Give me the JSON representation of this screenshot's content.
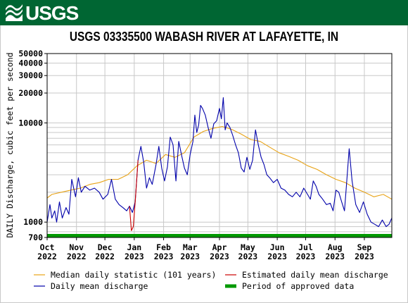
{
  "header": {
    "logo_text": "USGS",
    "logo_icon": "usgs-wave-logo",
    "brand_color": "#006633"
  },
  "chart_data": {
    "type": "line",
    "title": "USGS 03335500 WABASH RIVER AT LAFAYETTE, IN",
    "ylabel": "DAILY Discharge, cubic feet per second",
    "xlabel": "",
    "yscale": "log",
    "ylim": [
      700,
      50000
    ],
    "xlim": [
      "2022-10-01",
      "2023-09-30"
    ],
    "yticks": [
      {
        "value": 50000,
        "label": "50000"
      },
      {
        "value": 40000,
        "label": "40000"
      },
      {
        "value": 30000,
        "label": "30000"
      },
      {
        "value": 20000,
        "label": "20000"
      },
      {
        "value": 10000,
        "label": "10000"
      },
      {
        "value": 1000,
        "label": "1000"
      },
      {
        "value": 700,
        "label": "700"
      }
    ],
    "xticks": [
      {
        "date": "2022-10-01",
        "label": [
          "Oct",
          "2022"
        ]
      },
      {
        "date": "2022-11-01",
        "label": [
          "Nov",
          "2022"
        ]
      },
      {
        "date": "2022-12-01",
        "label": [
          "Dec",
          "2022"
        ]
      },
      {
        "date": "2023-01-01",
        "label": [
          "Jan",
          "2023"
        ]
      },
      {
        "date": "2023-02-01",
        "label": [
          "Feb",
          "2023"
        ]
      },
      {
        "date": "2023-03-01",
        "label": [
          "Mar",
          "2023"
        ]
      },
      {
        "date": "2023-04-01",
        "label": [
          "Apr",
          "2023"
        ]
      },
      {
        "date": "2023-05-01",
        "label": [
          "May",
          "2023"
        ]
      },
      {
        "date": "2023-06-01",
        "label": [
          "Jun",
          "2023"
        ]
      },
      {
        "date": "2023-07-01",
        "label": [
          "Jul",
          "2023"
        ]
      },
      {
        "date": "2023-08-01",
        "label": [
          "Aug",
          "2023"
        ]
      },
      {
        "date": "2023-09-01",
        "label": [
          "Sep",
          "2023"
        ]
      }
    ],
    "grid": true,
    "legend_placement": "bottom",
    "series": [
      {
        "name": "Median daily statistic (101 years)",
        "color": "#e8a317",
        "x": [
          "2022-10-01",
          "2022-10-06",
          "2022-10-16",
          "2022-10-26",
          "2022-11-05",
          "2022-11-15",
          "2022-11-25",
          "2022-12-05",
          "2022-12-15",
          "2022-12-25",
          "2023-01-04",
          "2023-01-14",
          "2023-01-24",
          "2023-02-03",
          "2023-02-13",
          "2023-02-23",
          "2023-03-05",
          "2023-03-15",
          "2023-03-25",
          "2023-04-04",
          "2023-04-14",
          "2023-04-24",
          "2023-05-04",
          "2023-05-14",
          "2023-05-24",
          "2023-06-03",
          "2023-06-13",
          "2023-06-23",
          "2023-07-03",
          "2023-07-13",
          "2023-07-23",
          "2023-08-02",
          "2023-08-12",
          "2023-08-22",
          "2023-09-01",
          "2023-09-11",
          "2023-09-21",
          "2023-09-30"
        ],
        "y": [
          1750,
          1900,
          2000,
          2100,
          2200,
          2400,
          2500,
          2700,
          2700,
          3000,
          3700,
          4200,
          3900,
          4800,
          4500,
          5000,
          7200,
          8200,
          8800,
          9200,
          8600,
          7700,
          6800,
          6500,
          5700,
          5000,
          4600,
          4200,
          3700,
          3400,
          3000,
          2700,
          2500,
          2200,
          2000,
          1800,
          1900,
          1700
        ]
      },
      {
        "name": "Daily mean discharge",
        "color": "#0000aa",
        "x": [
          "2022-10-01",
          "2022-10-04",
          "2022-10-06",
          "2022-10-09",
          "2022-10-11",
          "2022-10-14",
          "2022-10-17",
          "2022-10-21",
          "2022-10-24",
          "2022-10-27",
          "2022-10-31",
          "2022-11-03",
          "2022-11-06",
          "2022-11-10",
          "2022-11-15",
          "2022-11-20",
          "2022-11-25",
          "2022-11-29",
          "2022-12-04",
          "2022-12-08",
          "2022-12-12",
          "2022-12-16",
          "2022-12-20",
          "2022-12-24",
          "2022-12-27",
          "2022-12-30",
          "2023-01-02",
          "2023-01-05",
          "2023-01-08",
          "2023-01-11",
          "2023-01-14",
          "2023-01-17",
          "2023-01-20",
          "2023-01-24",
          "2023-01-27",
          "2023-01-30",
          "2023-02-02",
          "2023-02-05",
          "2023-02-08",
          "2023-02-11",
          "2023-02-14",
          "2023-02-17",
          "2023-02-20",
          "2023-02-23",
          "2023-02-26",
          "2023-03-01",
          "2023-03-04",
          "2023-03-06",
          "2023-03-08",
          "2023-03-10",
          "2023-03-12",
          "2023-03-14",
          "2023-03-17",
          "2023-03-20",
          "2023-03-23",
          "2023-03-26",
          "2023-03-29",
          "2023-04-01",
          "2023-04-03",
          "2023-04-05",
          "2023-04-07",
          "2023-04-09",
          "2023-04-12",
          "2023-04-15",
          "2023-04-18",
          "2023-04-21",
          "2023-04-24",
          "2023-04-27",
          "2023-04-30",
          "2023-05-03",
          "2023-05-06",
          "2023-05-09",
          "2023-05-12",
          "2023-05-15",
          "2023-05-18",
          "2023-05-21",
          "2023-05-24",
          "2023-05-28",
          "2023-06-01",
          "2023-06-05",
          "2023-06-09",
          "2023-06-13",
          "2023-06-17",
          "2023-06-21",
          "2023-06-25",
          "2023-06-29",
          "2023-07-03",
          "2023-07-06",
          "2023-07-09",
          "2023-07-12",
          "2023-07-15",
          "2023-07-19",
          "2023-07-23",
          "2023-07-27",
          "2023-07-30",
          "2023-08-02",
          "2023-08-05",
          "2023-08-08",
          "2023-08-11",
          "2023-08-13",
          "2023-08-16",
          "2023-08-19",
          "2023-08-23",
          "2023-08-27",
          "2023-08-31",
          "2023-09-04",
          "2023-09-08",
          "2023-09-12",
          "2023-09-16",
          "2023-09-20",
          "2023-09-24",
          "2023-09-27",
          "2023-09-30"
        ],
        "y": [
          1000,
          1500,
          1100,
          1300,
          1000,
          1600,
          1100,
          1400,
          1200,
          2700,
          1800,
          2800,
          2000,
          2300,
          2100,
          2200,
          2000,
          1700,
          1900,
          2700,
          1700,
          1500,
          1400,
          1300,
          1450,
          1250,
          1600,
          4200,
          5800,
          4000,
          2200,
          2800,
          2400,
          3800,
          5800,
          3500,
          2600,
          3600,
          7200,
          6000,
          2600,
          6500,
          4700,
          3500,
          3000,
          4800,
          6500,
          12000,
          8000,
          9500,
          15000,
          14000,
          12000,
          9000,
          7000,
          9800,
          10500,
          14000,
          11000,
          18000,
          8500,
          10000,
          9000,
          7500,
          6000,
          5000,
          3500,
          3200,
          4500,
          3400,
          4200,
          8500,
          6000,
          4500,
          3800,
          3000,
          2800,
          2500,
          2700,
          2200,
          2100,
          1900,
          1800,
          2000,
          1800,
          2200,
          1900,
          1700,
          2600,
          2300,
          1900,
          1700,
          1500,
          1550,
          1300,
          2100,
          2000,
          1600,
          1300,
          2300,
          5500,
          2600,
          1500,
          1250,
          1600,
          1200,
          1000,
          950,
          900,
          1050,
          900,
          950,
          1100
        ]
      },
      {
        "name": "Estimated daily mean discharge",
        "color": "#cc0000",
        "x": [
          "2022-12-27",
          "2022-12-29",
          "2022-12-31",
          "2023-01-02",
          "2023-01-05"
        ],
        "y": [
          1450,
          820,
          900,
          1600,
          4200
        ]
      },
      {
        "name": "Period of approved data",
        "color": "#009900",
        "x": [
          "2022-10-01",
          "2023-09-30"
        ],
        "y": [
          700,
          700
        ]
      }
    ]
  }
}
